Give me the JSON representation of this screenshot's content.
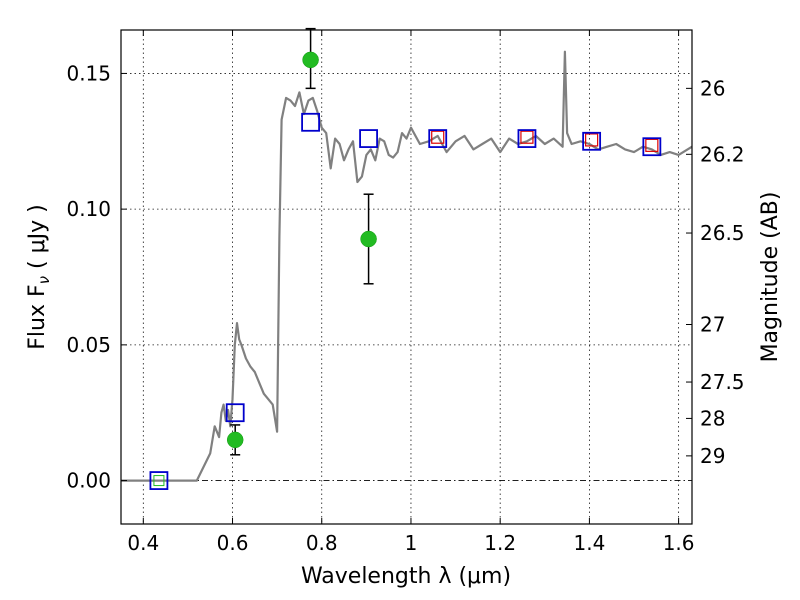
{
  "chart_data": {
    "type": "scatter",
    "title": "",
    "xlabel": "Wavelength  λ (μm)",
    "ylabel": "Flux  F",
    "ylabel_sub": "ν",
    "ylabel_unit": "  ( μJy )",
    "y2label": "Magnitude (AB)",
    "xlim": [
      0.35,
      1.63
    ],
    "ylim": [
      -0.016,
      0.166
    ],
    "grid": true,
    "legend": "none",
    "x_ticks": [
      {
        "value": 0.4,
        "label": "0.4"
      },
      {
        "value": 0.6,
        "label": "0.6"
      },
      {
        "value": 0.8,
        "label": "0.8"
      },
      {
        "value": 1.0,
        "label": "1"
      },
      {
        "value": 1.2,
        "label": "1.2"
      },
      {
        "value": 1.4,
        "label": "1.4"
      },
      {
        "value": 1.6,
        "label": "1.6"
      }
    ],
    "y_ticks": [
      {
        "value": 0.0,
        "label": "0.00"
      },
      {
        "value": 0.05,
        "label": "0.05"
      },
      {
        "value": 0.1,
        "label": "0.10"
      },
      {
        "value": 0.15,
        "label": "0.15"
      }
    ],
    "y2_ticks": [
      {
        "label": "26",
        "flux": 0.1445
      },
      {
        "label": "26.2",
        "flux": 0.1202
      },
      {
        "label": "26.5",
        "flux": 0.0912
      },
      {
        "label": "27",
        "flux": 0.0575
      },
      {
        "label": "27.5",
        "flux": 0.0363
      },
      {
        "label": "28",
        "flux": 0.0229
      },
      {
        "label": "29",
        "flux": 0.0091
      }
    ],
    "model_spectrum": {
      "color": "#808080",
      "x": [
        0.35,
        0.52,
        0.55,
        0.56,
        0.57,
        0.575,
        0.58,
        0.585,
        0.59,
        0.595,
        0.6,
        0.605,
        0.61,
        0.615,
        0.62,
        0.63,
        0.64,
        0.65,
        0.66,
        0.67,
        0.68,
        0.69,
        0.7,
        0.705,
        0.71,
        0.72,
        0.73,
        0.74,
        0.75,
        0.76,
        0.77,
        0.78,
        0.79,
        0.8,
        0.81,
        0.82,
        0.83,
        0.84,
        0.85,
        0.86,
        0.87,
        0.88,
        0.89,
        0.9,
        0.91,
        0.92,
        0.93,
        0.94,
        0.95,
        0.96,
        0.97,
        0.98,
        0.99,
        1.0,
        1.02,
        1.04,
        1.06,
        1.08,
        1.1,
        1.12,
        1.14,
        1.16,
        1.18,
        1.2,
        1.22,
        1.24,
        1.26,
        1.28,
        1.3,
        1.32,
        1.34,
        1.345,
        1.35,
        1.36,
        1.38,
        1.4,
        1.42,
        1.44,
        1.46,
        1.48,
        1.5,
        1.52,
        1.54,
        1.56,
        1.58,
        1.6,
        1.63
      ],
      "y": [
        0.0,
        0.0,
        0.01,
        0.02,
        0.016,
        0.025,
        0.028,
        0.022,
        0.026,
        0.02,
        0.03,
        0.05,
        0.058,
        0.052,
        0.05,
        0.045,
        0.042,
        0.04,
        0.036,
        0.032,
        0.03,
        0.028,
        0.018,
        0.09,
        0.133,
        0.141,
        0.14,
        0.138,
        0.143,
        0.135,
        0.14,
        0.141,
        0.136,
        0.13,
        0.128,
        0.115,
        0.126,
        0.124,
        0.118,
        0.122,
        0.125,
        0.11,
        0.112,
        0.12,
        0.122,
        0.118,
        0.126,
        0.125,
        0.12,
        0.119,
        0.121,
        0.128,
        0.126,
        0.13,
        0.124,
        0.125,
        0.127,
        0.121,
        0.125,
        0.127,
        0.122,
        0.124,
        0.126,
        0.121,
        0.126,
        0.124,
        0.125,
        0.127,
        0.124,
        0.126,
        0.123,
        0.158,
        0.128,
        0.124,
        0.125,
        0.124,
        0.122,
        0.123,
        0.124,
        0.122,
        0.121,
        0.123,
        0.122,
        0.12,
        0.121,
        0.12,
        0.123
      ]
    },
    "model_photometry": {
      "color": "#0000cc",
      "x": [
        0.435,
        0.606,
        0.775,
        0.905,
        1.06,
        1.26,
        1.405,
        1.54
      ],
      "y": [
        0.0,
        0.025,
        0.132,
        0.126,
        0.126,
        0.126,
        0.125,
        0.123
      ]
    },
    "observed_detections": {
      "color": "#22bb22",
      "x": [
        0.606,
        0.775,
        0.905
      ],
      "y": [
        0.015,
        0.155,
        0.089
      ],
      "err_low": [
        0.0055,
        0.0105,
        0.0165
      ],
      "err_high": [
        0.0055,
        0.0115,
        0.0165
      ]
    },
    "observed_limits": {
      "color": "#dd0000",
      "x": [
        1.06,
        1.26,
        1.405,
        1.54
      ],
      "y": [
        0.1265,
        0.1265,
        0.1255,
        0.1235
      ]
    }
  }
}
